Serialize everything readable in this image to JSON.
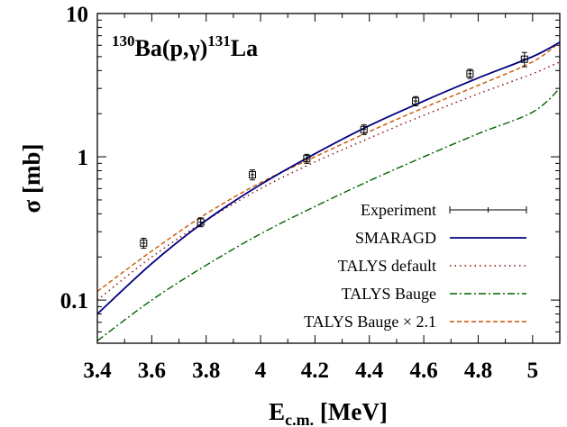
{
  "chart_data": {
    "type": "line",
    "annotation": {
      "element": "Ba",
      "mass": "130",
      "reaction": "(p,γ)",
      "product_mass": "131",
      "product": "La"
    },
    "xlabel": {
      "main": "E",
      "sub": "c.m.",
      "unit": " [MeV]"
    },
    "ylabel": "σ [mb]",
    "xlim": [
      3.4,
      5.1
    ],
    "ylim": [
      0.05,
      10
    ],
    "yscale": "log",
    "x_ticks": [
      3.4,
      3.6,
      3.8,
      4.0,
      4.2,
      4.4,
      4.6,
      4.8,
      5.0
    ],
    "x_tick_labels": [
      "3.4",
      "3.6",
      "3.8",
      "4",
      "4.2",
      "4.4",
      "4.6",
      "4.8",
      "5"
    ],
    "y_ticks": [
      0.1,
      1,
      10
    ],
    "y_tick_labels": [
      "0.1",
      "1",
      "10"
    ],
    "grid": false,
    "legend_position": "bottom-right",
    "experiment": {
      "name": "Experiment",
      "points": [
        {
          "x": 3.57,
          "y": 0.25,
          "yerr": 0.02,
          "xerr": 0.008
        },
        {
          "x": 3.78,
          "y": 0.35,
          "yerr": 0.025,
          "xerr": 0.008
        },
        {
          "x": 3.97,
          "y": 0.75,
          "yerr": 0.06,
          "xerr": 0.008
        },
        {
          "x": 4.17,
          "y": 0.97,
          "yerr": 0.07,
          "xerr": 0.008
        },
        {
          "x": 4.38,
          "y": 1.55,
          "yerr": 0.12,
          "xerr": 0.008
        },
        {
          "x": 4.57,
          "y": 2.45,
          "yerr": 0.18,
          "xerr": 0.008
        },
        {
          "x": 4.77,
          "y": 3.8,
          "yerr": 0.28,
          "xerr": 0.008
        },
        {
          "x": 4.97,
          "y": 4.8,
          "yerr": 0.55,
          "xerr": 0.008
        }
      ]
    },
    "series": [
      {
        "name": "SMARAGD",
        "color": "#000080",
        "dash": "solid",
        "x": [
          3.4,
          3.6,
          3.8,
          4.0,
          4.2,
          4.4,
          4.6,
          4.8,
          5.0,
          5.1
        ],
        "y": [
          0.08,
          0.18,
          0.36,
          0.64,
          1.05,
          1.65,
          2.45,
          3.55,
          5.0,
          6.3
        ]
      },
      {
        "name": "TALYS default",
        "color": "#8b0000",
        "dash": "dot",
        "x": [
          3.4,
          3.6,
          3.8,
          4.0,
          4.2,
          4.4,
          4.6,
          4.8,
          5.0,
          5.1
        ],
        "y": [
          0.1,
          0.2,
          0.36,
          0.6,
          0.92,
          1.35,
          1.95,
          2.75,
          3.8,
          4.6
        ]
      },
      {
        "name": "TALYS Bauge",
        "color": "#006400",
        "dash": "dashdot",
        "x": [
          3.4,
          3.6,
          3.8,
          4.0,
          4.2,
          4.4,
          4.6,
          4.8,
          5.0,
          5.1
        ],
        "y": [
          0.052,
          0.1,
          0.175,
          0.29,
          0.45,
          0.68,
          1.0,
          1.45,
          2.05,
          3.0
        ]
      },
      {
        "name": "TALYS Bauge × 2.1",
        "color": "#cc5500",
        "dash": "dash",
        "x": [
          3.4,
          3.6,
          3.8,
          4.0,
          4.2,
          4.4,
          4.6,
          4.8,
          5.0,
          5.1
        ],
        "y": [
          0.115,
          0.22,
          0.4,
          0.66,
          1.0,
          1.5,
          2.2,
          3.15,
          4.6,
          6.3
        ]
      }
    ]
  }
}
